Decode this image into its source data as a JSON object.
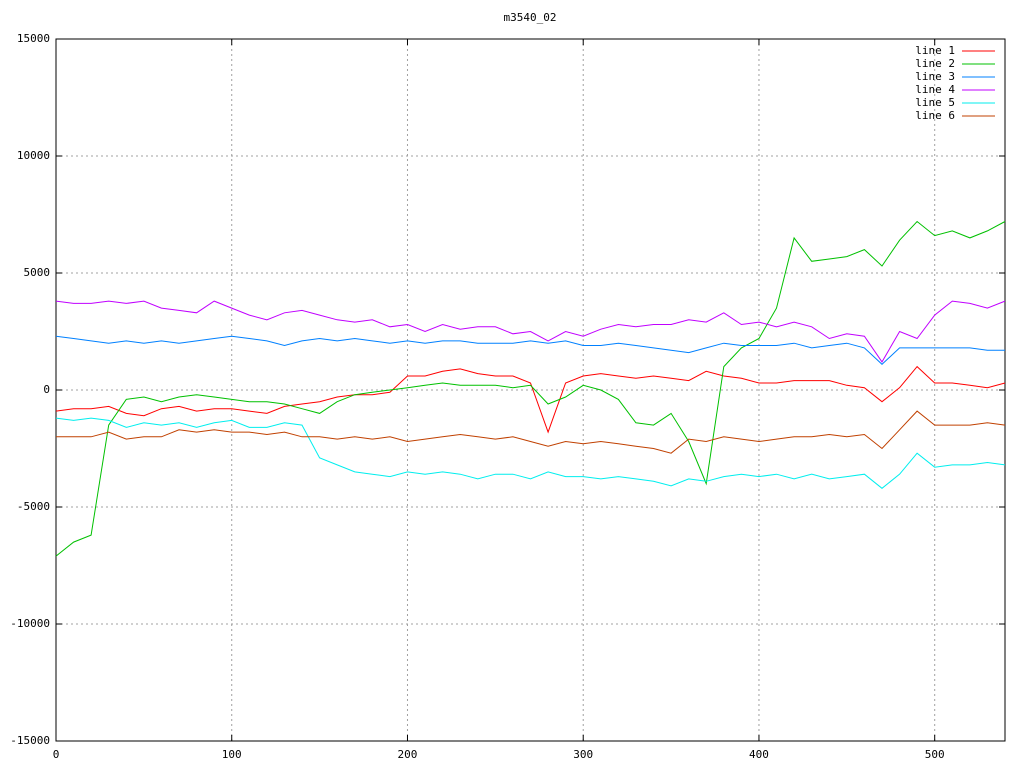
{
  "chart_data": {
    "type": "line",
    "title": "m3540_02",
    "x": [
      0,
      10,
      20,
      30,
      40,
      50,
      60,
      70,
      80,
      90,
      100,
      110,
      120,
      130,
      140,
      150,
      160,
      170,
      180,
      190,
      200,
      210,
      220,
      230,
      240,
      250,
      260,
      270,
      280,
      290,
      300,
      310,
      320,
      330,
      340,
      350,
      360,
      370,
      380,
      390,
      400,
      410,
      420,
      430,
      440,
      450,
      460,
      470,
      480,
      490,
      500,
      510,
      520,
      530,
      540
    ],
    "xlim": [
      0,
      540
    ],
    "xticks": [
      0,
      100,
      200,
      300,
      400,
      500
    ],
    "ylim": [
      -15000,
      15000
    ],
    "yticks": [
      -15000,
      -10000,
      -5000,
      0,
      5000,
      10000,
      15000
    ],
    "grid": true,
    "legend": "upper-right",
    "series": [
      {
        "name": "line 1",
        "color": "#ff0000",
        "values": [
          -900,
          -800,
          -800,
          -700,
          -1000,
          -1100,
          -800,
          -700,
          -900,
          -800,
          -800,
          -900,
          -1000,
          -700,
          -600,
          -500,
          -300,
          -200,
          -200,
          -100,
          600,
          600,
          800,
          900,
          700,
          600,
          600,
          300,
          -1800,
          300,
          600,
          700,
          600,
          500,
          600,
          500,
          400,
          800,
          600,
          500,
          300,
          300,
          400,
          400,
          400,
          200,
          100,
          -500,
          100,
          1000,
          300,
          300,
          200,
          100,
          300
        ]
      },
      {
        "name": "line 2",
        "color": "#00c000",
        "values": [
          -7100,
          -6500,
          -6200,
          -1500,
          -400,
          -300,
          -500,
          -300,
          -200,
          -300,
          -400,
          -500,
          -500,
          -600,
          -800,
          -1000,
          -500,
          -200,
          -100,
          0,
          100,
          200,
          300,
          200,
          200,
          200,
          100,
          200,
          -600,
          -300,
          200,
          0,
          -400,
          -1400,
          -1500,
          -1000,
          -2200,
          -4000,
          1000,
          1800,
          2200,
          3500,
          6500,
          5500,
          5600,
          5700,
          6000,
          5300,
          6400,
          7200,
          6600,
          6800,
          6500,
          6800,
          7200
        ]
      },
      {
        "name": "line 3",
        "color": "#0080ff",
        "values": [
          2300,
          2200,
          2100,
          2000,
          2100,
          2000,
          2100,
          2000,
          2100,
          2200,
          2300,
          2200,
          2100,
          1900,
          2100,
          2200,
          2100,
          2200,
          2100,
          2000,
          2100,
          2000,
          2100,
          2100,
          2000,
          2000,
          2000,
          2100,
          2000,
          2100,
          1900,
          1900,
          2000,
          1900,
          1800,
          1700,
          1600,
          1800,
          2000,
          1900,
          1900,
          1900,
          2000,
          1800,
          1900,
          2000,
          1800,
          1100,
          1800,
          1800,
          1800,
          1800,
          1800,
          1700,
          1700
        ]
      },
      {
        "name": "line 4",
        "color": "#c000ff",
        "values": [
          3800,
          3700,
          3700,
          3800,
          3700,
          3800,
          3500,
          3400,
          3300,
          3800,
          3500,
          3200,
          3000,
          3300,
          3400,
          3200,
          3000,
          2900,
          3000,
          2700,
          2800,
          2500,
          2800,
          2600,
          2700,
          2700,
          2400,
          2500,
          2100,
          2500,
          2300,
          2600,
          2800,
          2700,
          2800,
          2800,
          3000,
          2900,
          3300,
          2800,
          2900,
          2700,
          2900,
          2700,
          2200,
          2400,
          2300,
          1200,
          2500,
          2200,
          3200,
          3800,
          3700,
          3500,
          3800
        ]
      },
      {
        "name": "line 5",
        "color": "#00eeee",
        "values": [
          -1200,
          -1300,
          -1200,
          -1300,
          -1600,
          -1400,
          -1500,
          -1400,
          -1600,
          -1400,
          -1300,
          -1600,
          -1600,
          -1400,
          -1500,
          -2900,
          -3200,
          -3500,
          -3600,
          -3700,
          -3500,
          -3600,
          -3500,
          -3600,
          -3800,
          -3600,
          -3600,
          -3800,
          -3500,
          -3700,
          -3700,
          -3800,
          -3700,
          -3800,
          -3900,
          -4100,
          -3800,
          -3900,
          -3700,
          -3600,
          -3700,
          -3600,
          -3800,
          -3600,
          -3800,
          -3700,
          -3600,
          -4200,
          -3600,
          -2700,
          -3300,
          -3200,
          -3200,
          -3100,
          -3200
        ]
      },
      {
        "name": "line 6",
        "color": "#c04000",
        "values": [
          -2000,
          -2000,
          -2000,
          -1800,
          -2100,
          -2000,
          -2000,
          -1700,
          -1800,
          -1700,
          -1800,
          -1800,
          -1900,
          -1800,
          -2000,
          -2000,
          -2100,
          -2000,
          -2100,
          -2000,
          -2200,
          -2100,
          -2000,
          -1900,
          -2000,
          -2100,
          -2000,
          -2200,
          -2400,
          -2200,
          -2300,
          -2200,
          -2300,
          -2400,
          -2500,
          -2700,
          -2100,
          -2200,
          -2000,
          -2100,
          -2200,
          -2100,
          -2000,
          -2000,
          -1900,
          -2000,
          -1900,
          -2500,
          -1700,
          -900,
          -1500,
          -1500,
          -1500,
          -1400,
          -1500
        ]
      }
    ]
  }
}
